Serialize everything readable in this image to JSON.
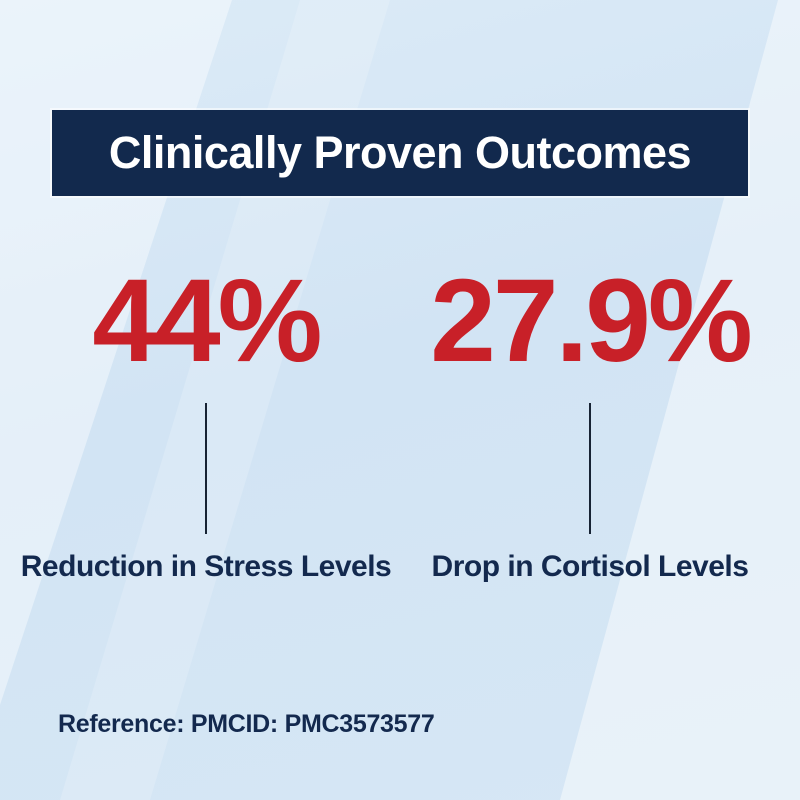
{
  "header": {
    "title": "Clinically Proven Outcomes"
  },
  "stats": [
    {
      "value": "44%",
      "label": "Reduction in Stress Levels"
    },
    {
      "value": "27.9%",
      "label": "Drop in Cortisol Levels"
    }
  ],
  "footer": {
    "reference": "Reference: PMCID: PMC3573577"
  },
  "colors": {
    "background": "#d3e5f4",
    "banner_bg": "#12294d",
    "banner_text": "#ffffff",
    "stat_value_red": "#c82028",
    "label_navy": "#13294e",
    "connector_line": "#172334"
  },
  "chart_data": {
    "type": "table",
    "title": "Clinically Proven Outcomes",
    "categories": [
      "Reduction in Stress Levels",
      "Drop in Cortisol Levels"
    ],
    "values": [
      44,
      27.9
    ],
    "unit": "%",
    "value_labels": [
      "44%",
      "27.9%"
    ],
    "annotations": [
      "Reference: PMCID: PMC3573577"
    ],
    "legend_position": "none",
    "grid": false
  }
}
